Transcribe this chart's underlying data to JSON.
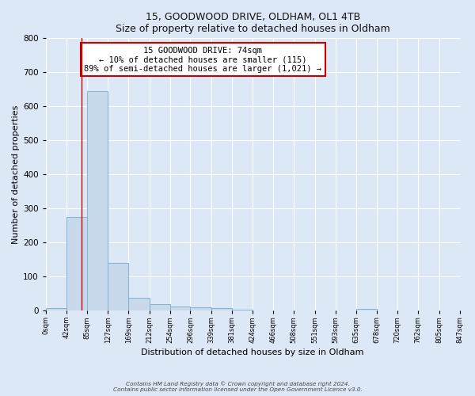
{
  "title1": "15, GOODWOOD DRIVE, OLDHAM, OL1 4TB",
  "title2": "Size of property relative to detached houses in Oldham",
  "xlabel": "Distribution of detached houses by size in Oldham",
  "ylabel": "Number of detached properties",
  "bin_edges": [
    0,
    42,
    85,
    127,
    169,
    212,
    254,
    296,
    339,
    381,
    424,
    466,
    508,
    551,
    593,
    635,
    678,
    720,
    762,
    805,
    847
  ],
  "bin_counts": [
    8,
    275,
    645,
    140,
    38,
    20,
    12,
    10,
    8,
    3,
    0,
    0,
    0,
    0,
    0,
    6,
    0,
    0,
    0,
    0
  ],
  "tick_labels": [
    "0sqm",
    "42sqm",
    "85sqm",
    "127sqm",
    "169sqm",
    "212sqm",
    "254sqm",
    "296sqm",
    "339sqm",
    "381sqm",
    "424sqm",
    "466sqm",
    "508sqm",
    "551sqm",
    "593sqm",
    "635sqm",
    "678sqm",
    "720sqm",
    "762sqm",
    "805sqm",
    "847sqm"
  ],
  "bar_color": "#c8d9ec",
  "bar_edge_color": "#7fb3d3",
  "vline_x": 74,
  "vline_color": "#cc0000",
  "ylim": [
    0,
    800
  ],
  "yticks": [
    0,
    100,
    200,
    300,
    400,
    500,
    600,
    700,
    800
  ],
  "annotation_text": "15 GOODWOOD DRIVE: 74sqm\n← 10% of detached houses are smaller (115)\n89% of semi-detached houses are larger (1,021) →",
  "annotation_box_color": "#ffffff",
  "annotation_box_edgecolor": "#cc0000",
  "footer_text1": "Contains HM Land Registry data © Crown copyright and database right 2024.",
  "footer_text2": "Contains public sector information licensed under the Open Government Licence v3.0.",
  "background_color": "#dce8f5",
  "plot_bg_color": "#dce8f5",
  "grid_color": "#ffffff"
}
